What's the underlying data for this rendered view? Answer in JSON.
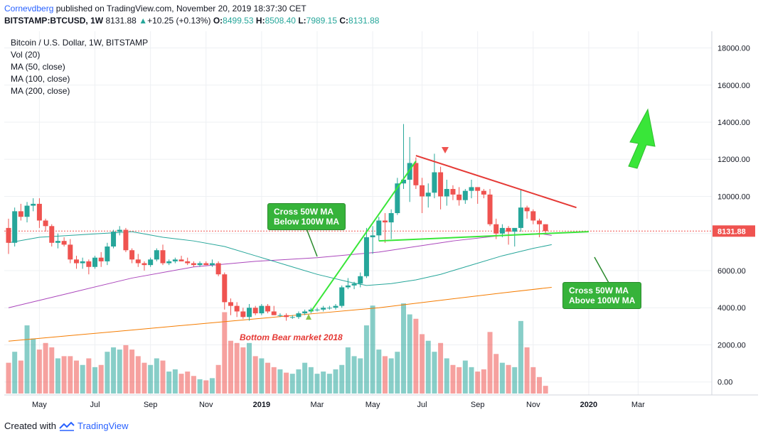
{
  "header": {
    "author": "Cornevdberg",
    "published_text": "published on TradingView.com, November 20, 2019 18:37:30 CET",
    "symbol": "BITSTAMP:BTCUSD, 1W",
    "price": "8131.88",
    "change": "+10.25 (+0.13%)",
    "o_label": "O:",
    "o_value": "8499.53",
    "h_label": "H:",
    "h_value": "8508.40",
    "l_label": "L:",
    "l_value": "7989.15",
    "c_label": "C:",
    "c_value": "8131.88"
  },
  "legend": {
    "title": "Bitcoin / U.S. Dollar, 1W, BITSTAMP",
    "vol": "Vol (20)",
    "ma50": "MA (50, close)",
    "ma100": "MA (100, close)",
    "ma200": "MA (200, close)"
  },
  "annotations": {
    "callout1_line1": "Cross 50W MA",
    "callout1_line2": "Below 100W MA",
    "callout2_line1": "Cross 50W MA",
    "callout2_line2": "Above 100W MA",
    "bottom_label": "Bottom Bear market 2018"
  },
  "footer": {
    "created_with": "Created with",
    "brand": "TradingView"
  },
  "colors": {
    "up": "#26a69a",
    "down": "#ef5350",
    "ma50": "#26a69a",
    "ma100": "#ab47bc",
    "ma200": "#f57c00",
    "trend": "#39e639",
    "resistance": "#e53935"
  },
  "chart_data": {
    "type": "candlestick",
    "title": "Bitcoin / U.S. Dollar, 1W, BITSTAMP",
    "ylim": [
      -700,
      18900
    ],
    "y_ticks": [
      0,
      2000,
      4000,
      6000,
      8000,
      10000,
      12000,
      14000,
      16000,
      18000
    ],
    "y_tick_labels": [
      "0.00",
      "2000.00",
      "4000.00",
      "6000.00",
      "8000.00",
      "10000.00",
      "12000.00",
      "14000.00",
      "16000.00",
      "18000.00"
    ],
    "last_price": 8131.88,
    "last_price_label": "8131.88",
    "x_ticks": [
      {
        "label": "May",
        "week": 5
      },
      {
        "label": "Jul",
        "week": 14
      },
      {
        "label": "Sep",
        "week": 23
      },
      {
        "label": "Nov",
        "week": 32
      },
      {
        "label": "2019",
        "week": 41
      },
      {
        "label": "Mar",
        "week": 50
      },
      {
        "label": "May",
        "week": 59
      },
      {
        "label": "Jul",
        "week": 67
      },
      {
        "label": "Sep",
        "week": 76
      },
      {
        "label": "Nov",
        "week": 85
      },
      {
        "label": "2020",
        "week": 94
      },
      {
        "label": "Mar",
        "week": 102
      }
    ],
    "candles": [
      [
        8300,
        8800,
        6900,
        7500,
        1400
      ],
      [
        7500,
        9400,
        7300,
        9200,
        1900
      ],
      [
        9200,
        9600,
        8700,
        8900,
        1500
      ],
      [
        8900,
        9700,
        8600,
        9500,
        3100
      ],
      [
        9500,
        9900,
        9200,
        9600,
        2500
      ],
      [
        9600,
        9900,
        8300,
        8700,
        2000
      ],
      [
        8700,
        8800,
        8100,
        8400,
        2300
      ],
      [
        8400,
        8500,
        7300,
        7500,
        2100
      ],
      [
        7500,
        8000,
        7200,
        7600,
        1600
      ],
      [
        7600,
        7800,
        7300,
        7400,
        1700
      ],
      [
        7400,
        7700,
        6400,
        6600,
        1700
      ],
      [
        6600,
        6800,
        6100,
        6400,
        1500
      ],
      [
        6400,
        6700,
        6100,
        6500,
        1300
      ],
      [
        6500,
        6600,
        5800,
        6200,
        1600
      ],
      [
        6200,
        6800,
        6100,
        6700,
        1200
      ],
      [
        6700,
        7000,
        6200,
        6500,
        1300
      ],
      [
        6500,
        7500,
        6300,
        7300,
        1900
      ],
      [
        7300,
        8200,
        7200,
        8100,
        2100
      ],
      [
        8100,
        8400,
        7900,
        8200,
        2000
      ],
      [
        8200,
        8300,
        7000,
        7100,
        2200
      ],
      [
        7100,
        7200,
        6400,
        6600,
        2000
      ],
      [
        6600,
        6900,
        6200,
        6400,
        1700
      ],
      [
        6400,
        6500,
        6000,
        6300,
        1400
      ],
      [
        6300,
        6700,
        6200,
        6600,
        1300
      ],
      [
        6600,
        7200,
        6500,
        7100,
        1600
      ],
      [
        7100,
        7400,
        6300,
        6400,
        1500
      ],
      [
        6400,
        6600,
        6300,
        6500,
        1000
      ],
      [
        6500,
        6700,
        6400,
        6600,
        1100
      ],
      [
        6600,
        6800,
        6500,
        6500,
        900
      ],
      [
        6500,
        6700,
        6300,
        6400,
        1000
      ],
      [
        6400,
        6500,
        6200,
        6300,
        800
      ],
      [
        6300,
        6500,
        6200,
        6400,
        650
      ],
      [
        6400,
        6500,
        6300,
        6300,
        600
      ],
      [
        6300,
        6600,
        6200,
        6400,
        700
      ],
      [
        6400,
        6500,
        5700,
        5800,
        1300
      ],
      [
        5800,
        5900,
        3900,
        4300,
        3700
      ],
      [
        4300,
        4500,
        3600,
        4100,
        2400
      ],
      [
        4100,
        4300,
        3500,
        3800,
        2300
      ],
      [
        3800,
        4000,
        3400,
        3500,
        2100
      ],
      [
        3500,
        4200,
        3300,
        4000,
        2300
      ],
      [
        4000,
        4100,
        3600,
        3700,
        1700
      ],
      [
        3700,
        4200,
        3600,
        4100,
        1600
      ],
      [
        4100,
        4200,
        3700,
        3800,
        1400
      ],
      [
        3800,
        4100,
        3600,
        3600,
        1200
      ],
      [
        3600,
        3700,
        3500,
        3600,
        1100
      ],
      [
        3600,
        3700,
        3300,
        3500,
        950
      ],
      [
        3500,
        3600,
        3400,
        3500,
        900
      ],
      [
        3500,
        3800,
        3400,
        3700,
        1100
      ],
      [
        3700,
        3900,
        3600,
        3800,
        1400
      ],
      [
        3800,
        4000,
        3700,
        3900,
        1200
      ],
      [
        3900,
        4000,
        3800,
        3900,
        900
      ],
      [
        3900,
        4100,
        3800,
        4000,
        1000
      ],
      [
        4000,
        4100,
        3900,
        4000,
        900
      ],
      [
        4000,
        4200,
        3900,
        4100,
        1100
      ],
      [
        4100,
        5200,
        4000,
        5100,
        1300
      ],
      [
        5100,
        5600,
        5000,
        5200,
        2100
      ],
      [
        5200,
        5400,
        5000,
        5300,
        1700
      ],
      [
        5300,
        5900,
        5100,
        5700,
        1600
      ],
      [
        5700,
        8300,
        5600,
        7800,
        3100
      ],
      [
        7800,
        8400,
        6900,
        7900,
        4000
      ],
      [
        7900,
        8900,
        7600,
        8700,
        2000
      ],
      [
        8700,
        9100,
        7500,
        8600,
        1700
      ],
      [
        8600,
        9300,
        7700,
        9100,
        1600
      ],
      [
        9100,
        11000,
        9000,
        10700,
        1900
      ],
      [
        10700,
        13900,
        10400,
        10900,
        4100
      ],
      [
        10900,
        13200,
        9700,
        11800,
        3600
      ],
      [
        11800,
        12100,
        10400,
        10600,
        3400
      ],
      [
        10600,
        11000,
        9100,
        10000,
        2700
      ],
      [
        10000,
        10700,
        9400,
        10200,
        2400
      ],
      [
        10200,
        12300,
        9900,
        11300,
        1900
      ],
      [
        11300,
        11600,
        9300,
        10000,
        2300
      ],
      [
        10000,
        10900,
        9500,
        10400,
        1600
      ],
      [
        10400,
        10600,
        9800,
        10100,
        1300
      ],
      [
        10100,
        10500,
        9500,
        9800,
        1200
      ],
      [
        9800,
        10400,
        9600,
        10300,
        1500
      ],
      [
        10300,
        10900,
        9900,
        10500,
        1200
      ],
      [
        10500,
        10500,
        9600,
        10300,
        1000
      ],
      [
        10300,
        10400,
        9900,
        10100,
        1100
      ],
      [
        10100,
        10400,
        8400,
        8500,
        2800
      ],
      [
        8500,
        8800,
        7700,
        8000,
        1800
      ],
      [
        8000,
        8500,
        7800,
        8300,
        1400
      ],
      [
        8300,
        8400,
        7400,
        8100,
        1300
      ],
      [
        8100,
        8200,
        7300,
        8300,
        1200
      ],
      [
        8300,
        10400,
        8100,
        9400,
        3300
      ],
      [
        9400,
        9500,
        8800,
        9200,
        2100
      ],
      [
        9200,
        9300,
        8500,
        8700,
        1200
      ],
      [
        8700,
        8800,
        7800,
        8500,
        750
      ],
      [
        8500,
        8500,
        7990,
        8130,
        350
      ]
    ],
    "ma50": [
      [
        0,
        7500
      ],
      [
        5,
        7800
      ],
      [
        10,
        7900
      ],
      [
        15,
        8000
      ],
      [
        20,
        8100
      ],
      [
        25,
        7800
      ],
      [
        30,
        7600
      ],
      [
        35,
        7300
      ],
      [
        40,
        6800
      ],
      [
        45,
        6300
      ],
      [
        50,
        5800
      ],
      [
        55,
        5400
      ],
      [
        58,
        5200
      ],
      [
        62,
        5300
      ],
      [
        66,
        5500
      ],
      [
        70,
        5800
      ],
      [
        75,
        6300
      ],
      [
        80,
        6800
      ],
      [
        85,
        7200
      ],
      [
        88,
        7400
      ]
    ],
    "ma100": [
      [
        0,
        4000
      ],
      [
        10,
        4800
      ],
      [
        20,
        5600
      ],
      [
        30,
        6200
      ],
      [
        40,
        6500
      ],
      [
        50,
        6700
      ],
      [
        60,
        7000
      ],
      [
        66,
        7300
      ],
      [
        72,
        7600
      ],
      [
        80,
        7900
      ],
      [
        86,
        8000
      ],
      [
        88,
        7900
      ]
    ],
    "ma200": [
      [
        0,
        2200
      ],
      [
        10,
        2500
      ],
      [
        20,
        2800
      ],
      [
        30,
        3100
      ],
      [
        40,
        3400
      ],
      [
        50,
        3700
      ],
      [
        60,
        4000
      ],
      [
        70,
        4400
      ],
      [
        80,
        4800
      ],
      [
        88,
        5100
      ]
    ],
    "trendlines": [
      {
        "name": "uptrend",
        "points": [
          [
            49,
            3800
          ],
          [
            66,
            11900
          ]
        ],
        "color": "trend"
      },
      {
        "name": "support",
        "points": [
          [
            60,
            7600
          ],
          [
            94,
            8100
          ]
        ],
        "color": "trend"
      },
      {
        "name": "resistance",
        "points": [
          [
            66,
            12200
          ],
          [
            92,
            9400
          ]
        ],
        "color": "resistance"
      }
    ]
  }
}
